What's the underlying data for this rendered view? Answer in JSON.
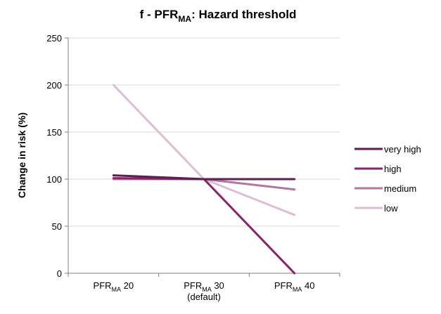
{
  "chart_data": {
    "type": "line",
    "title": {
      "prefix": "f  -  PFR",
      "subscript": "MA",
      "suffix": ": Hazard threshold"
    },
    "ylabel": "Change in risk (%)",
    "xlabel": "",
    "ylim": [
      0,
      250
    ],
    "yticks": [
      0,
      50,
      100,
      150,
      200,
      250
    ],
    "grid": "horizontal",
    "legend_position": "right",
    "categories": [
      {
        "base": "PFR",
        "subscript": "MA",
        "suffix": " 20",
        "note": ""
      },
      {
        "base": "PFR",
        "subscript": "MA",
        "suffix": " 30",
        "note": "(default)"
      },
      {
        "base": "PFR",
        "subscript": "MA",
        "suffix": " 40",
        "note": ""
      }
    ],
    "series": [
      {
        "name": "very high",
        "color": "#5e1f4e",
        "values": [
          104,
          100,
          100
        ]
      },
      {
        "name": "high",
        "color": "#8a2270",
        "values": [
          101,
          100,
          0
        ]
      },
      {
        "name": "medium",
        "color": "#b0789e",
        "values": [
          100,
          100,
          89
        ]
      },
      {
        "name": "low",
        "color": "#dcbfd4",
        "values": [
          200,
          100,
          62
        ]
      }
    ]
  }
}
